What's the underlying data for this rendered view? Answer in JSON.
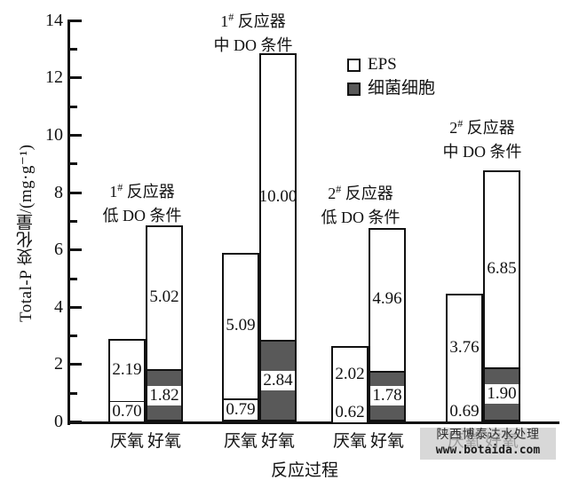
{
  "chart_data": {
    "type": "bar",
    "stacked": true,
    "title": "",
    "xlabel": "反应过程",
    "ylabel": "Total-P 变化量/(mg·g⁻¹)",
    "ylim": [
      0,
      14
    ],
    "ytick_major_step": 2,
    "ytick_minor_step": 1,
    "ytick_labels": [
      "0",
      "2",
      "4",
      "6",
      "8",
      "10",
      "12",
      "14"
    ],
    "grid": false,
    "legend": [
      "EPS",
      "细菌细胞"
    ],
    "legend_position": "upper-center",
    "colors": {
      "eps_fill": "#ffffff",
      "bacteria_fill": "#595959",
      "axis": "#111111"
    },
    "categories": [
      "厌氧",
      "好氧",
      "厌氧",
      "好氧",
      "厌氧",
      "好氧",
      "厌氧",
      "好氧"
    ],
    "series": [
      {
        "name": "细菌细胞",
        "values": [
          0.7,
          1.82,
          0.79,
          2.84,
          0.62,
          1.78,
          0.69,
          1.9
        ]
      },
      {
        "name": "EPS",
        "values": [
          2.19,
          5.02,
          5.09,
          10.0,
          2.02,
          4.96,
          3.76,
          6.85
        ]
      }
    ],
    "groups": [
      {
        "annotation_line1": "1# 反应器",
        "annotation_line2": "低 DO 条件",
        "bars": [
          {
            "category": "厌氧",
            "bacteria": 0.7,
            "bacteria_label": "0.70",
            "eps": 2.19,
            "eps_label": "2.19"
          },
          {
            "category": "好氧",
            "bacteria": 1.82,
            "bacteria_label": "1.82",
            "eps": 5.02,
            "eps_label": "5.02"
          }
        ]
      },
      {
        "annotation_line1": "1# 反应器",
        "annotation_line2": "中 DO 条件",
        "bars": [
          {
            "category": "厌氧",
            "bacteria": 0.79,
            "bacteria_label": "0.79",
            "eps": 5.09,
            "eps_label": "5.09"
          },
          {
            "category": "好氧",
            "bacteria": 2.84,
            "bacteria_label": "2.84",
            "eps": 10.0,
            "eps_label": "10.00"
          }
        ]
      },
      {
        "annotation_line1": "2# 反应器",
        "annotation_line2": "低 DO 条件",
        "bars": [
          {
            "category": "厌氧",
            "bacteria": 0.62,
            "bacteria_label": "0.62",
            "eps": 2.02,
            "eps_label": "2.02"
          },
          {
            "category": "好氧",
            "bacteria": 1.78,
            "bacteria_label": "1.78",
            "eps": 4.96,
            "eps_label": "4.96"
          }
        ]
      },
      {
        "annotation_line1": "2# 反应器",
        "annotation_line2": "中 DO 条件",
        "bars": [
          {
            "category": "厌氧",
            "bacteria": 0.69,
            "bacteria_label": "0.69",
            "eps": 3.76,
            "eps_label": "3.76"
          },
          {
            "category": "好氧",
            "bacteria": 1.9,
            "bacteria_label": "1.90",
            "eps": 6.85,
            "eps_label": "6.85"
          }
        ]
      }
    ]
  },
  "watermark": {
    "line1": "陕西博泰达水处理",
    "line2": "www.botaida.com"
  }
}
